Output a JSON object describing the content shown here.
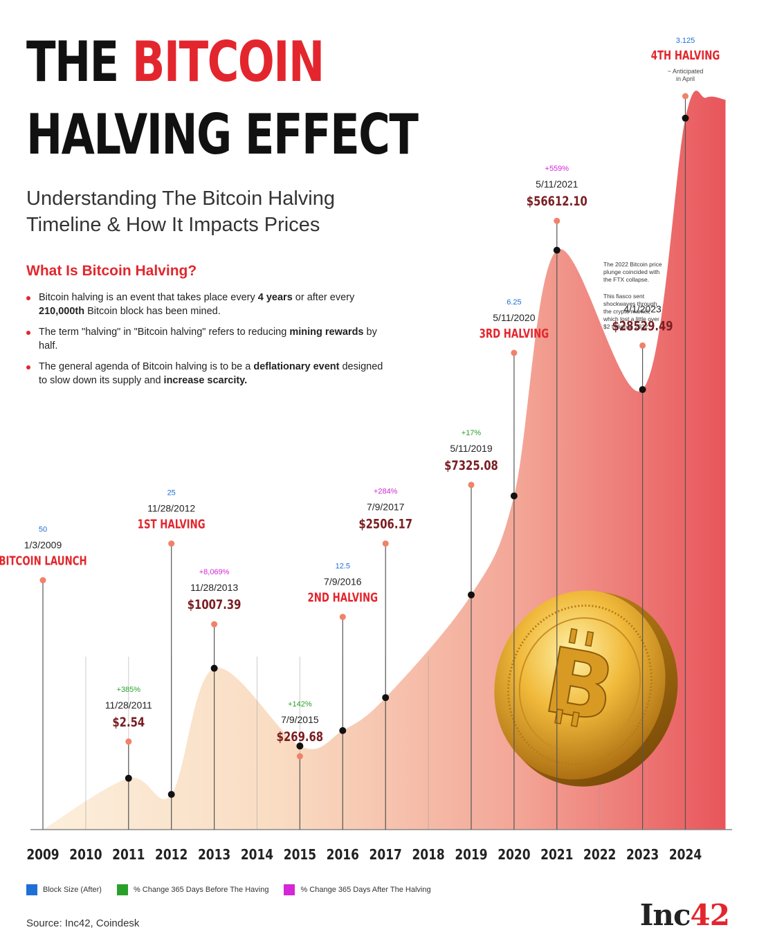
{
  "title": {
    "part1": "THE ",
    "part2": "BITCOIN",
    "line2": "HALVING EFFECT"
  },
  "subtitle": {
    "line1": "Understanding The Bitcoin Halving",
    "line2": "Timeline & How It Impacts Prices"
  },
  "what_is": {
    "heading": "What Is Bitcoin Halving?",
    "bullets": [
      [
        "Bitcoin halving is an event that takes place every ",
        "4 years",
        " or after every ",
        "210,000th",
        " Bitcoin block has been mined."
      ],
      [
        "The term \"halving\" in \"Bitcoin halving\" refers to reducing ",
        "mining rewards",
        " by half.",
        "",
        ""
      ],
      [
        "The general agenda of Bitcoin halving is to be a ",
        "deflationary event",
        " designed to slow down its supply and ",
        "increase scarcity.",
        ""
      ]
    ]
  },
  "chart_data": {
    "type": "area",
    "x_ticks": [
      "2009",
      "2010",
      "2011",
      "2012",
      "2013",
      "2014",
      "2015",
      "2016",
      "2017",
      "2018",
      "2019",
      "2020",
      "2021",
      "2022",
      "2023",
      "2024"
    ],
    "points": [
      {
        "year": 2011,
        "y": 0.07
      },
      {
        "year": 2012,
        "y": 0.048
      },
      {
        "year": 2013,
        "y": 0.22
      },
      {
        "year": 2015,
        "y": 0.114
      },
      {
        "year": 2016,
        "y": 0.135
      },
      {
        "year": 2017,
        "y": 0.18
      },
      {
        "year": 2019,
        "y": 0.32
      },
      {
        "year": 2020,
        "y": 0.455
      },
      {
        "year": 2021,
        "y": 0.79
      },
      {
        "year": 2023,
        "y": 0.6
      },
      {
        "year": 2024,
        "y": 0.97
      }
    ],
    "annotations": [
      {
        "year": 2009,
        "pin": 0.34,
        "lines": [
          {
            "t": "50",
            "c": "blue"
          },
          {
            "t": "1/3/2009",
            "c": "dark"
          },
          {
            "t": "BITCOIN LAUNCH",
            "c": "red"
          }
        ]
      },
      {
        "year": 2011,
        "pin": 0.12,
        "lines": [
          {
            "t": "+385%",
            "c": "green"
          },
          {
            "t": "11/28/2011",
            "c": "dark"
          },
          {
            "t": "$2.54",
            "c": "maroon"
          }
        ]
      },
      {
        "year": 2012,
        "pin": 0.39,
        "lines": [
          {
            "t": "25",
            "c": "blue"
          },
          {
            "t": "11/28/2012",
            "c": "dark"
          },
          {
            "t": "1ST HALVING",
            "c": "red"
          }
        ]
      },
      {
        "year": 2013,
        "pin": 0.28,
        "lines": [
          {
            "t": "+8,069%",
            "c": "magenta"
          },
          {
            "t": "11/28/2013",
            "c": "dark"
          },
          {
            "t": "$1007.39",
            "c": "maroon"
          }
        ]
      },
      {
        "year": 2015,
        "pin": 0.1,
        "lines": [
          {
            "t": "+142%",
            "c": "green"
          },
          {
            "t": "7/9/2015",
            "c": "dark"
          },
          {
            "t": "$269.68",
            "c": "maroon"
          }
        ]
      },
      {
        "year": 2016,
        "pin": 0.29,
        "lines": [
          {
            "t": "12.5",
            "c": "blue"
          },
          {
            "t": "7/9/2016",
            "c": "dark"
          },
          {
            "t": "2ND HALVING",
            "c": "red"
          }
        ]
      },
      {
        "year": 2017,
        "pin": 0.39,
        "lines": [
          {
            "t": "+284%",
            "c": "magenta"
          },
          {
            "t": "7/9/2017",
            "c": "dark"
          },
          {
            "t": "$2506.17",
            "c": "maroon"
          }
        ]
      },
      {
        "year": 2019,
        "pin": 0.47,
        "lines": [
          {
            "t": "+17%",
            "c": "green"
          },
          {
            "t": "5/11/2019",
            "c": "dark"
          },
          {
            "t": "$7325.08",
            "c": "maroon"
          }
        ]
      },
      {
        "year": 2020,
        "pin": 0.65,
        "lines": [
          {
            "t": "6.25",
            "c": "blue"
          },
          {
            "t": "5/11/2020",
            "c": "dark"
          },
          {
            "t": "3RD HALVING",
            "c": "red"
          }
        ]
      },
      {
        "year": 2021,
        "pin": 0.83,
        "lines": [
          {
            "t": "+559%",
            "c": "magenta"
          },
          {
            "t": "5/11/2021",
            "c": "dark"
          },
          {
            "t": "$56612.10",
            "c": "maroon"
          }
        ]
      },
      {
        "year": 2023,
        "pin": 0.66,
        "lines": [
          {
            "t": "4/1/2023",
            "c": "dark"
          },
          {
            "t": "$28529.49",
            "c": "maroon"
          }
        ]
      },
      {
        "year": 2024,
        "pin": 1.0,
        "lines": [
          {
            "t": "3.125",
            "c": "blue"
          },
          {
            "t": "4TH HALVING",
            "c": "red"
          },
          {
            "t": "~ Anticipated",
            "c": "small"
          },
          {
            "t": "in April",
            "c": "small"
          }
        ]
      }
    ],
    "note_2023": [
      "The 2022 Bitcoin price",
      "plunge coincided with",
      "the FTX collapse.",
      "",
      "This fiasco sent",
      "shockwaves through",
      "the crypto market,",
      "which lost a little over",
      "$2 trillion in 2022."
    ],
    "colors": {
      "blue": "#1e6fd6",
      "green": "#2aa02a",
      "magenta": "#d427d6",
      "dark": "#222222",
      "red": "#e3262d",
      "maroon": "#7a1e22",
      "small": "#444444",
      "fill_left": "#fbe6cf",
      "fill_right": "#e8555b"
    },
    "legend": [
      {
        "label": "Block Size (After)",
        "color": "#1e6fd6"
      },
      {
        "label": "% Change 365 Days Before The Having",
        "color": "#2aa02a"
      },
      {
        "label": "% Change 365 Days After The Halving",
        "color": "#d427d6"
      }
    ]
  },
  "source": "Source: Inc42, Coindesk",
  "logo": {
    "text": "Inc",
    "num": "42"
  }
}
